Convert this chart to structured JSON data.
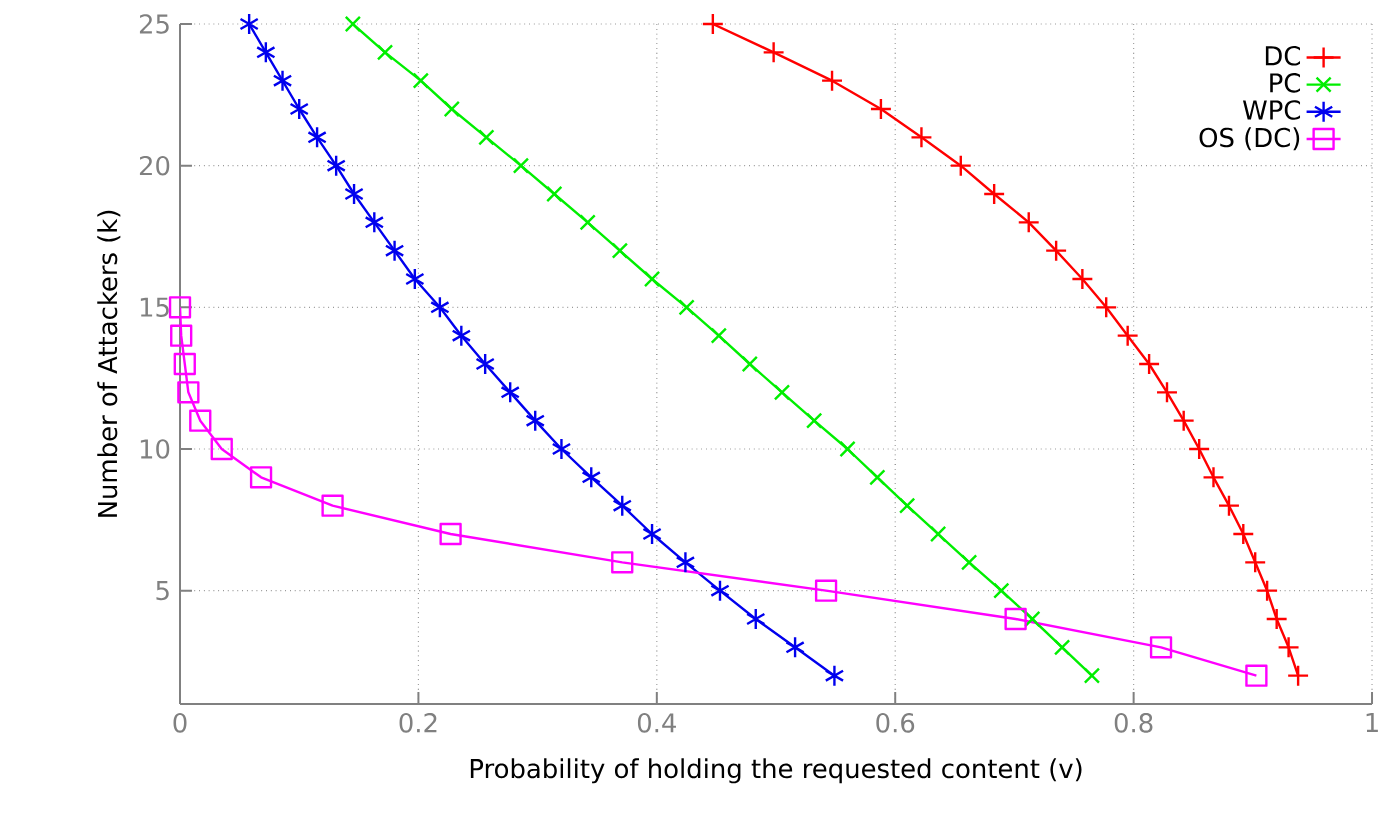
{
  "chart_data": {
    "type": "line",
    "xlabel": "Probability of holding the requested content (v)",
    "ylabel": "Number of Attackers (k)",
    "xlim": [
      0,
      1
    ],
    "ylim": [
      1,
      25
    ],
    "xticks": [
      0,
      0.2,
      0.4,
      0.6,
      0.8,
      1
    ],
    "yticks": [
      5,
      10,
      15,
      20,
      25
    ],
    "grid": true,
    "legend": "top right",
    "line_style": "solid",
    "series": [
      {
        "name": "DC",
        "color": "#ff0000",
        "marker": "cross",
        "x": [
          0.447,
          0.498,
          0.547,
          0.588,
          0.622,
          0.655,
          0.683,
          0.712,
          0.735,
          0.757,
          0.777,
          0.795,
          0.813,
          0.828,
          0.842,
          0.855,
          0.867,
          0.88,
          0.892,
          0.902,
          0.912,
          0.92,
          0.93,
          0.938
        ],
        "values": [
          25,
          24,
          23,
          22,
          21,
          20,
          19,
          18,
          17,
          16,
          15,
          14,
          13,
          12,
          11,
          10,
          9,
          8,
          7,
          6,
          5,
          4,
          3,
          2
        ]
      },
      {
        "name": "PC",
        "color": "#00ee00",
        "marker": "cross",
        "x": [
          0.145,
          0.172,
          0.202,
          0.228,
          0.257,
          0.286,
          0.314,
          0.342,
          0.369,
          0.396,
          0.425,
          0.452,
          0.478,
          0.505,
          0.532,
          0.56,
          0.585,
          0.61,
          0.636,
          0.662,
          0.689,
          0.715,
          0.74,
          0.765
        ],
        "values": [
          25,
          24,
          23,
          22,
          21,
          20,
          19,
          18,
          17,
          16,
          15,
          14,
          13,
          12,
          11,
          10,
          9,
          8,
          7,
          6,
          5,
          4,
          3,
          2
        ]
      },
      {
        "name": "WPC",
        "color": "#0000ee",
        "marker": "cross",
        "x": [
          0.058,
          0.072,
          0.086,
          0.1,
          0.115,
          0.131,
          0.146,
          0.163,
          0.18,
          0.197,
          0.218,
          0.236,
          0.256,
          0.277,
          0.298,
          0.32,
          0.345,
          0.371,
          0.396,
          0.424,
          0.453,
          0.483,
          0.516,
          0.549
        ],
        "values": [
          25,
          24,
          23,
          22,
          21,
          20,
          19,
          18,
          17,
          16,
          15,
          14,
          13,
          12,
          11,
          10,
          9,
          8,
          7,
          6,
          5,
          4,
          3,
          2
        ]
      },
      {
        "name": "OS (DC)",
        "color": "#ff00ff",
        "marker": "square",
        "x": [
          0.0,
          0.001,
          0.004,
          0.007,
          0.017,
          0.035,
          0.068,
          0.128,
          0.227,
          0.371,
          0.542,
          0.701,
          0.823,
          0.903
        ],
        "values": [
          15,
          14,
          13,
          12,
          11,
          10,
          9,
          8,
          7,
          6,
          5,
          4,
          3,
          2
        ]
      }
    ]
  }
}
